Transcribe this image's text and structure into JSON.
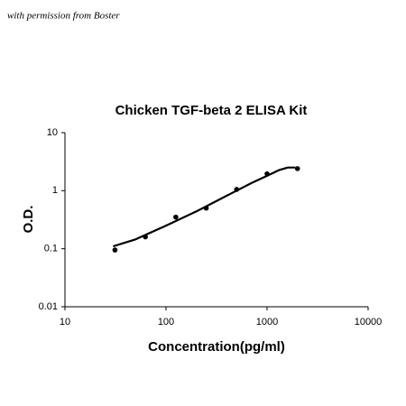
{
  "watermark": "with permission from Boster",
  "chart_data": {
    "type": "scatter",
    "title": "Chicken TGF-beta 2 ELISA Kit",
    "x_label": "Concentration(pg/ml)",
    "y_label": "O.D.",
    "x": [
      31.25,
      62.5,
      125,
      250,
      500,
      1000,
      2000
    ],
    "values": [
      0.095,
      0.16,
      0.35,
      0.5,
      1.05,
      1.95,
      2.4
    ],
    "color": "#000000",
    "fit": {
      "x": [
        30,
        50,
        100,
        200,
        400,
        700,
        1000,
        1300,
        1600,
        1900
      ],
      "values": [
        0.11,
        0.145,
        0.25,
        0.44,
        0.82,
        1.35,
        1.8,
        2.25,
        2.5,
        2.5
      ]
    },
    "xlog": true,
    "ylog": true,
    "xlim": [
      10,
      10000
    ],
    "ylim": [
      0.01,
      10
    ],
    "xticks": [
      10,
      100,
      1000,
      10000
    ],
    "yticks": [
      0.01,
      0.1,
      1,
      10
    ]
  }
}
